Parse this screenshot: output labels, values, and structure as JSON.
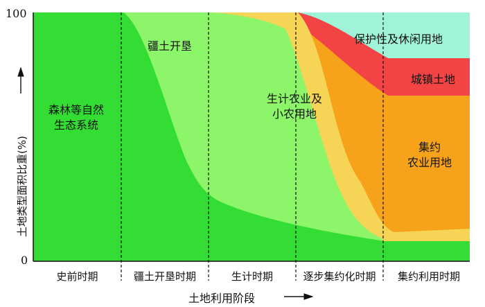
{
  "chart_data": {
    "type": "area",
    "stacked": true,
    "ylim": [
      0,
      100
    ],
    "ylabel": "土地类型面积比重(%)",
    "xlabel": "土地利用阶段",
    "y_ticks": [
      "100",
      "0"
    ],
    "stages": [
      "史前时期",
      "疆土开垦时期",
      "生计时期",
      "逐步集约化时期",
      "集约利用时期"
    ],
    "grid": false,
    "colors": {
      "forest": "#33dd33",
      "cleared": "#8cf56a",
      "subsistence": "#f6d455",
      "intensive": "#f7a21b",
      "urban": "#f24444",
      "recreation": "#9ff3d8"
    },
    "layers": [
      {
        "key": "forest",
        "label": "森林等自然\n生态系统"
      },
      {
        "key": "cleared",
        "label": "疆土开垦"
      },
      {
        "key": "subsistence",
        "label": "生计农业及\n小农用地"
      },
      {
        "key": "intensive",
        "label": "集约\n农业用地"
      },
      {
        "key": "urban",
        "label": "城镇土地"
      },
      {
        "key": "recreation",
        "label": "保护性及休闲用地"
      }
    ]
  }
}
